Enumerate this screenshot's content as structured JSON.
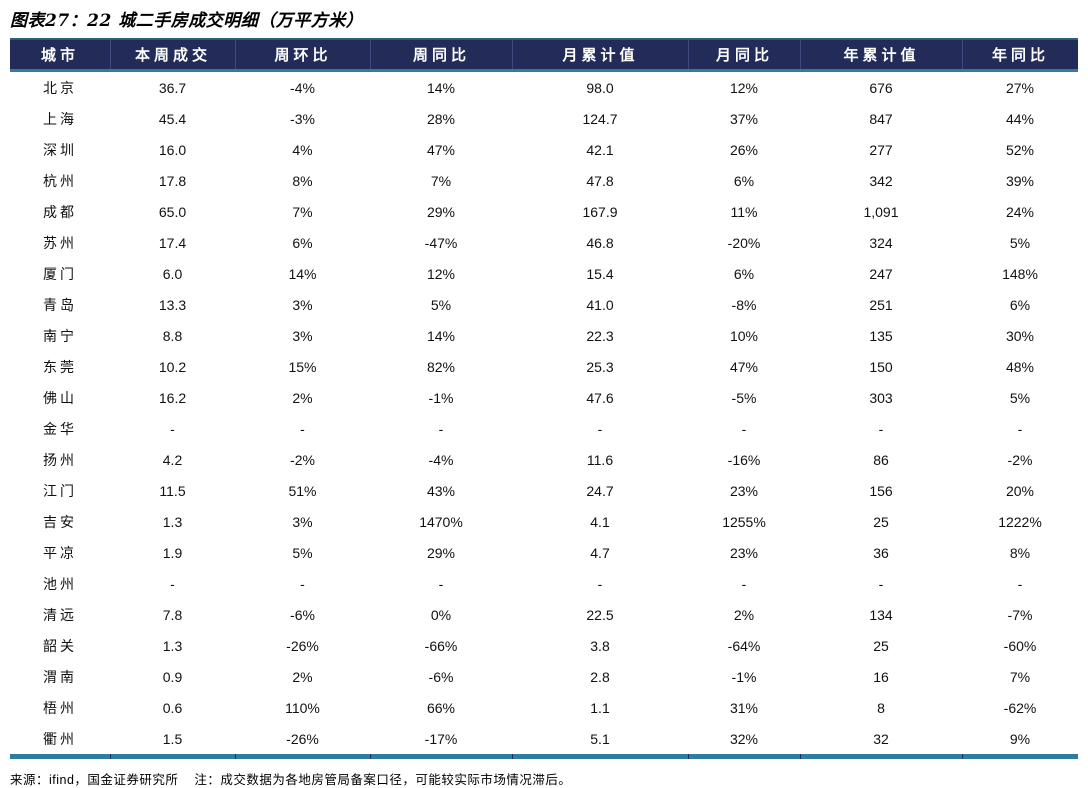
{
  "title": "图表27：22 城二手房成交明细（万平方米）",
  "colors": {
    "header_bg": "#232c58",
    "accent_teal": "#2e7d9c",
    "header_separator": "#3c4a7d",
    "header_text": "#ffffff",
    "body_text": "#111111"
  },
  "table": {
    "columns": [
      {
        "label": "城市"
      },
      {
        "label": "本周成交"
      },
      {
        "label": "周环比"
      },
      {
        "label": "周同比"
      },
      {
        "label": "月累计值"
      },
      {
        "label": "月同比"
      },
      {
        "label": "年累计值"
      },
      {
        "label": "年同比"
      }
    ],
    "rows": [
      [
        "北京",
        "36.7",
        "-4%",
        "14%",
        "98.0",
        "12%",
        "676",
        "27%"
      ],
      [
        "上海",
        "45.4",
        "-3%",
        "28%",
        "124.7",
        "37%",
        "847",
        "44%"
      ],
      [
        "深圳",
        "16.0",
        "4%",
        "47%",
        "42.1",
        "26%",
        "277",
        "52%"
      ],
      [
        "杭州",
        "17.8",
        "8%",
        "7%",
        "47.8",
        "6%",
        "342",
        "39%"
      ],
      [
        "成都",
        "65.0",
        "7%",
        "29%",
        "167.9",
        "11%",
        "1,091",
        "24%"
      ],
      [
        "苏州",
        "17.4",
        "6%",
        "-47%",
        "46.8",
        "-20%",
        "324",
        "5%"
      ],
      [
        "厦门",
        "6.0",
        "14%",
        "12%",
        "15.4",
        "6%",
        "247",
        "148%"
      ],
      [
        "青岛",
        "13.3",
        "3%",
        "5%",
        "41.0",
        "-8%",
        "251",
        "6%"
      ],
      [
        "南宁",
        "8.8",
        "3%",
        "14%",
        "22.3",
        "10%",
        "135",
        "30%"
      ],
      [
        "东莞",
        "10.2",
        "15%",
        "82%",
        "25.3",
        "47%",
        "150",
        "48%"
      ],
      [
        "佛山",
        "16.2",
        "2%",
        "-1%",
        "47.6",
        "-5%",
        "303",
        "5%"
      ],
      [
        "金华",
        "-",
        "-",
        "-",
        "-",
        "-",
        "-",
        "-"
      ],
      [
        "扬州",
        "4.2",
        "-2%",
        "-4%",
        "11.6",
        "-16%",
        "86",
        "-2%"
      ],
      [
        "江门",
        "11.5",
        "51%",
        "43%",
        "24.7",
        "23%",
        "156",
        "20%"
      ],
      [
        "吉安",
        "1.3",
        "3%",
        "1470%",
        "4.1",
        "1255%",
        "25",
        "1222%"
      ],
      [
        "平凉",
        "1.9",
        "5%",
        "29%",
        "4.7",
        "23%",
        "36",
        "8%"
      ],
      [
        "池州",
        "-",
        "-",
        "-",
        "-",
        "-",
        "-",
        "-"
      ],
      [
        "清远",
        "7.8",
        "-6%",
        "0%",
        "22.5",
        "2%",
        "134",
        "-7%"
      ],
      [
        "韶关",
        "1.3",
        "-26%",
        "-66%",
        "3.8",
        "-64%",
        "25",
        "-60%"
      ],
      [
        "渭南",
        "0.9",
        "2%",
        "-6%",
        "2.8",
        "-1%",
        "16",
        "7%"
      ],
      [
        "梧州",
        "0.6",
        "110%",
        "66%",
        "1.1",
        "31%",
        "8",
        "-62%"
      ],
      [
        "衢州",
        "1.5",
        "-26%",
        "-17%",
        "5.1",
        "32%",
        "32",
        "9%"
      ]
    ]
  },
  "footer": {
    "source": "来源：ifind，国金证券研究所",
    "note": "注：成交数据为各地房管局备案口径，可能较实际市场情况滞后。"
  }
}
